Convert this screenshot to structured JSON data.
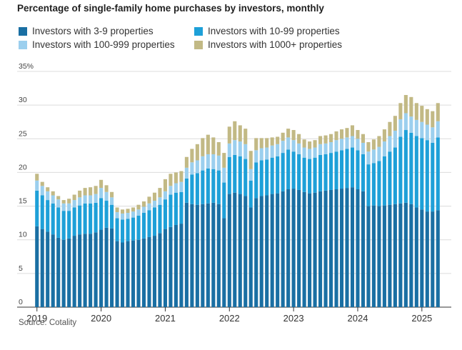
{
  "title": "Percentage of single-family home purchases by investors, monthly",
  "source": "Source: Cotality",
  "chart_data": {
    "type": "bar",
    "stacked": true,
    "ylim": [
      0,
      35
    ],
    "yticks": [
      "35%",
      "30",
      "25",
      "20",
      "15",
      "10",
      "5",
      "0"
    ],
    "ytick_values": [
      35,
      30,
      25,
      20,
      15,
      10,
      5,
      0
    ],
    "xticks": [
      "2019",
      "2020",
      "2021",
      "2022",
      "2023",
      "2024",
      "2025"
    ],
    "start": "2019-01",
    "grid": true,
    "legend_position": "top",
    "series": [
      {
        "name": "Investors with 3-9 properties",
        "color": "#1a6fa3",
        "values": [
          12.0,
          11.6,
          11.2,
          10.8,
          10.3,
          10.0,
          10.2,
          10.6,
          10.8,
          10.9,
          10.9,
          11.1,
          11.5,
          11.8,
          11.7,
          9.8,
          9.6,
          9.8,
          9.9,
          10.0,
          10.2,
          10.4,
          10.6,
          11.0,
          11.6,
          11.9,
          12.2,
          12.4,
          15.5,
          15.3,
          15.2,
          15.3,
          15.4,
          15.5,
          15.3,
          13.2,
          16.8,
          17.0,
          16.8,
          16.5,
          14.8,
          16.2,
          16.5,
          16.6,
          16.8,
          16.9,
          17.2,
          17.5,
          17.6,
          17.4,
          17.1,
          16.9,
          17.0,
          17.2,
          17.3,
          17.4,
          17.5,
          17.6,
          17.7,
          17.8,
          17.5,
          17.2,
          15.0,
          15.1,
          15.0,
          15.1,
          15.2,
          15.3,
          15.4,
          15.5,
          15.3,
          14.8,
          14.5,
          14.2,
          14.2,
          14.4
        ]
      },
      {
        "name": "Investors with 10-99 properties",
        "color": "#1ea0d8",
        "values": [
          5.3,
          5.0,
          4.7,
          4.6,
          4.5,
          4.3,
          4.1,
          4.2,
          4.3,
          4.5,
          4.5,
          4.4,
          4.7,
          4.0,
          3.5,
          3.4,
          3.4,
          3.3,
          3.4,
          3.6,
          3.8,
          4.0,
          4.2,
          4.2,
          4.4,
          4.8,
          4.8,
          4.7,
          3.6,
          4.4,
          4.7,
          5.0,
          5.2,
          5.0,
          5.0,
          5.3,
          5.5,
          5.6,
          5.6,
          5.5,
          4.0,
          5.3,
          5.3,
          5.3,
          5.4,
          5.5,
          5.7,
          5.9,
          5.5,
          5.3,
          5.1,
          5.1,
          5.2,
          5.4,
          5.4,
          5.5,
          5.6,
          5.7,
          5.8,
          5.9,
          5.8,
          5.5,
          6.2,
          6.3,
          6.7,
          7.3,
          7.9,
          8.4,
          9.9,
          10.8,
          10.6,
          10.6,
          10.6,
          10.6,
          10.2,
          10.8
        ]
      },
      {
        "name": "Investors with 100-999 properties",
        "color": "#9bcfee",
        "values": [
          1.5,
          1.4,
          1.3,
          1.2,
          1.2,
          1.1,
          1.1,
          1.1,
          1.2,
          1.2,
          1.2,
          1.3,
          1.5,
          1.3,
          1.1,
          0.9,
          0.9,
          0.9,
          0.9,
          0.9,
          0.9,
          1.0,
          1.0,
          1.1,
          1.2,
          1.3,
          1.4,
          1.5,
          1.6,
          1.8,
          1.9,
          2.1,
          2.1,
          2.2,
          2.2,
          2.2,
          2.0,
          2.2,
          2.2,
          2.2,
          1.7,
          1.8,
          1.8,
          1.8,
          1.8,
          1.8,
          1.8,
          1.8,
          1.7,
          1.6,
          1.5,
          1.5,
          1.5,
          1.6,
          1.6,
          1.6,
          1.7,
          1.7,
          1.7,
          1.7,
          1.7,
          1.7,
          1.9,
          2.0,
          2.1,
          2.2,
          2.3,
          2.5,
          2.6,
          2.5,
          2.4,
          2.4,
          2.4,
          2.3,
          2.3,
          2.4
        ]
      },
      {
        "name": "Investors with 1000+ properties",
        "color": "#c2b985",
        "values": [
          1.0,
          0.6,
          0.6,
          0.6,
          0.5,
          0.5,
          0.7,
          0.8,
          1.0,
          1.1,
          1.2,
          1.2,
          1.2,
          1.0,
          0.8,
          0.7,
          0.6,
          0.6,
          0.6,
          0.7,
          0.8,
          1.0,
          1.2,
          1.4,
          1.8,
          1.8,
          1.6,
          1.6,
          1.6,
          2.0,
          2.4,
          2.7,
          2.9,
          2.5,
          2.0,
          2.2,
          2.5,
          2.8,
          2.4,
          2.3,
          2.7,
          1.8,
          1.5,
          1.4,
          1.2,
          1.1,
          1.2,
          1.3,
          1.5,
          1.4,
          1.2,
          1.1,
          1.1,
          1.2,
          1.2,
          1.2,
          1.3,
          1.4,
          1.4,
          1.6,
          1.3,
          1.3,
          1.4,
          1.5,
          1.6,
          1.8,
          2.1,
          2.2,
          2.4,
          2.7,
          2.9,
          2.5,
          2.4,
          2.3,
          2.4,
          2.7
        ]
      }
    ]
  }
}
